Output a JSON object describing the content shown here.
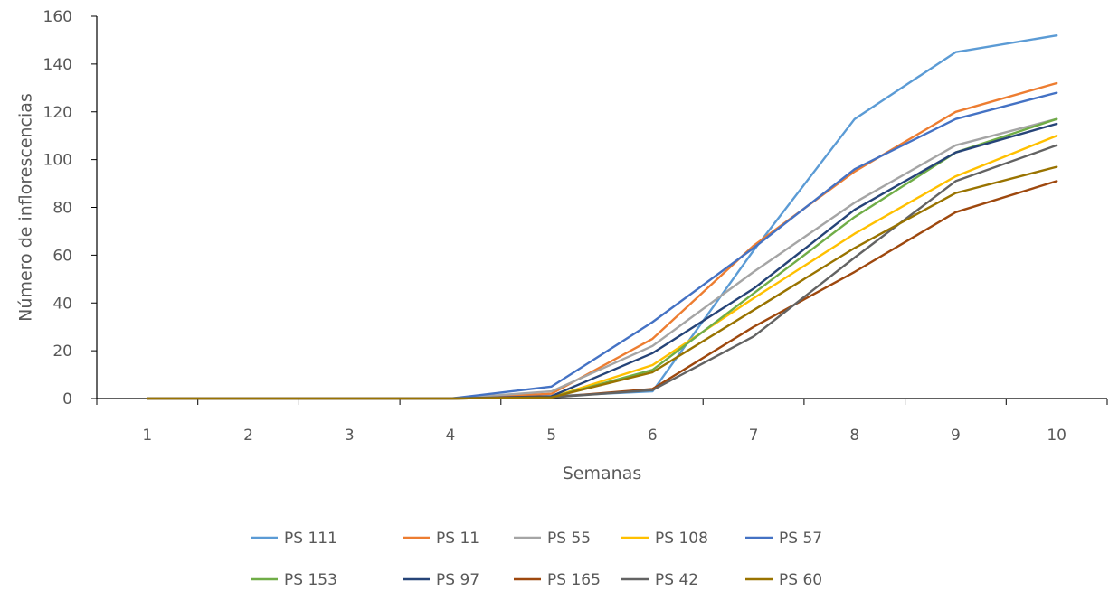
{
  "chart_data": {
    "type": "line",
    "title": "",
    "xlabel": "Semanas",
    "ylabel": "Número de inflorescencias",
    "categories": [
      "1",
      "2",
      "3",
      "4",
      "5",
      "6",
      "7",
      "8",
      "9",
      "10"
    ],
    "ylim": [
      0,
      160
    ],
    "yticks": [
      "0",
      "20",
      "40",
      "60",
      "80",
      "100",
      "120",
      "140",
      "160"
    ],
    "grid": false,
    "legend_position": "bottom",
    "series": [
      {
        "name": "PS 111",
        "color": "#5B9BD5",
        "values": [
          0,
          0,
          0,
          0,
          1,
          3,
          62,
          117,
          145,
          152
        ]
      },
      {
        "name": "PS 11",
        "color": "#ED7D31",
        "values": [
          0,
          0,
          0,
          0,
          2,
          25,
          64,
          95,
          120,
          132
        ]
      },
      {
        "name": "PS 55",
        "color": "#A5A5A5",
        "values": [
          0,
          0,
          0,
          0,
          3,
          22,
          53,
          82,
          106,
          117
        ]
      },
      {
        "name": "PS 108",
        "color": "#FFC000",
        "values": [
          0,
          0,
          0,
          0,
          0.5,
          14,
          42,
          69,
          93,
          110
        ]
      },
      {
        "name": "PS 57",
        "color": "#4472C4",
        "values": [
          0,
          0,
          0,
          0,
          5,
          32,
          63,
          96,
          117,
          128
        ]
      },
      {
        "name": "PS 153",
        "color": "#70AD47",
        "values": [
          0,
          0,
          0,
          0,
          0.5,
          12,
          44,
          76,
          103,
          117
        ]
      },
      {
        "name": "PS 97",
        "color": "#264478",
        "values": [
          0,
          0,
          0,
          0,
          1,
          19,
          46,
          79,
          103,
          115
        ]
      },
      {
        "name": "PS 165",
        "color": "#9E480E",
        "values": [
          0,
          0,
          0,
          0,
          0.5,
          4,
          30,
          53,
          78,
          91
        ]
      },
      {
        "name": "PS 42",
        "color": "#636363",
        "values": [
          0,
          0,
          0,
          0,
          0.5,
          3.5,
          26,
          59,
          91,
          106
        ]
      },
      {
        "name": "PS 60",
        "color": "#997300",
        "values": [
          0,
          0,
          0,
          0,
          0.5,
          11,
          37,
          63,
          86,
          97
        ]
      }
    ]
  }
}
